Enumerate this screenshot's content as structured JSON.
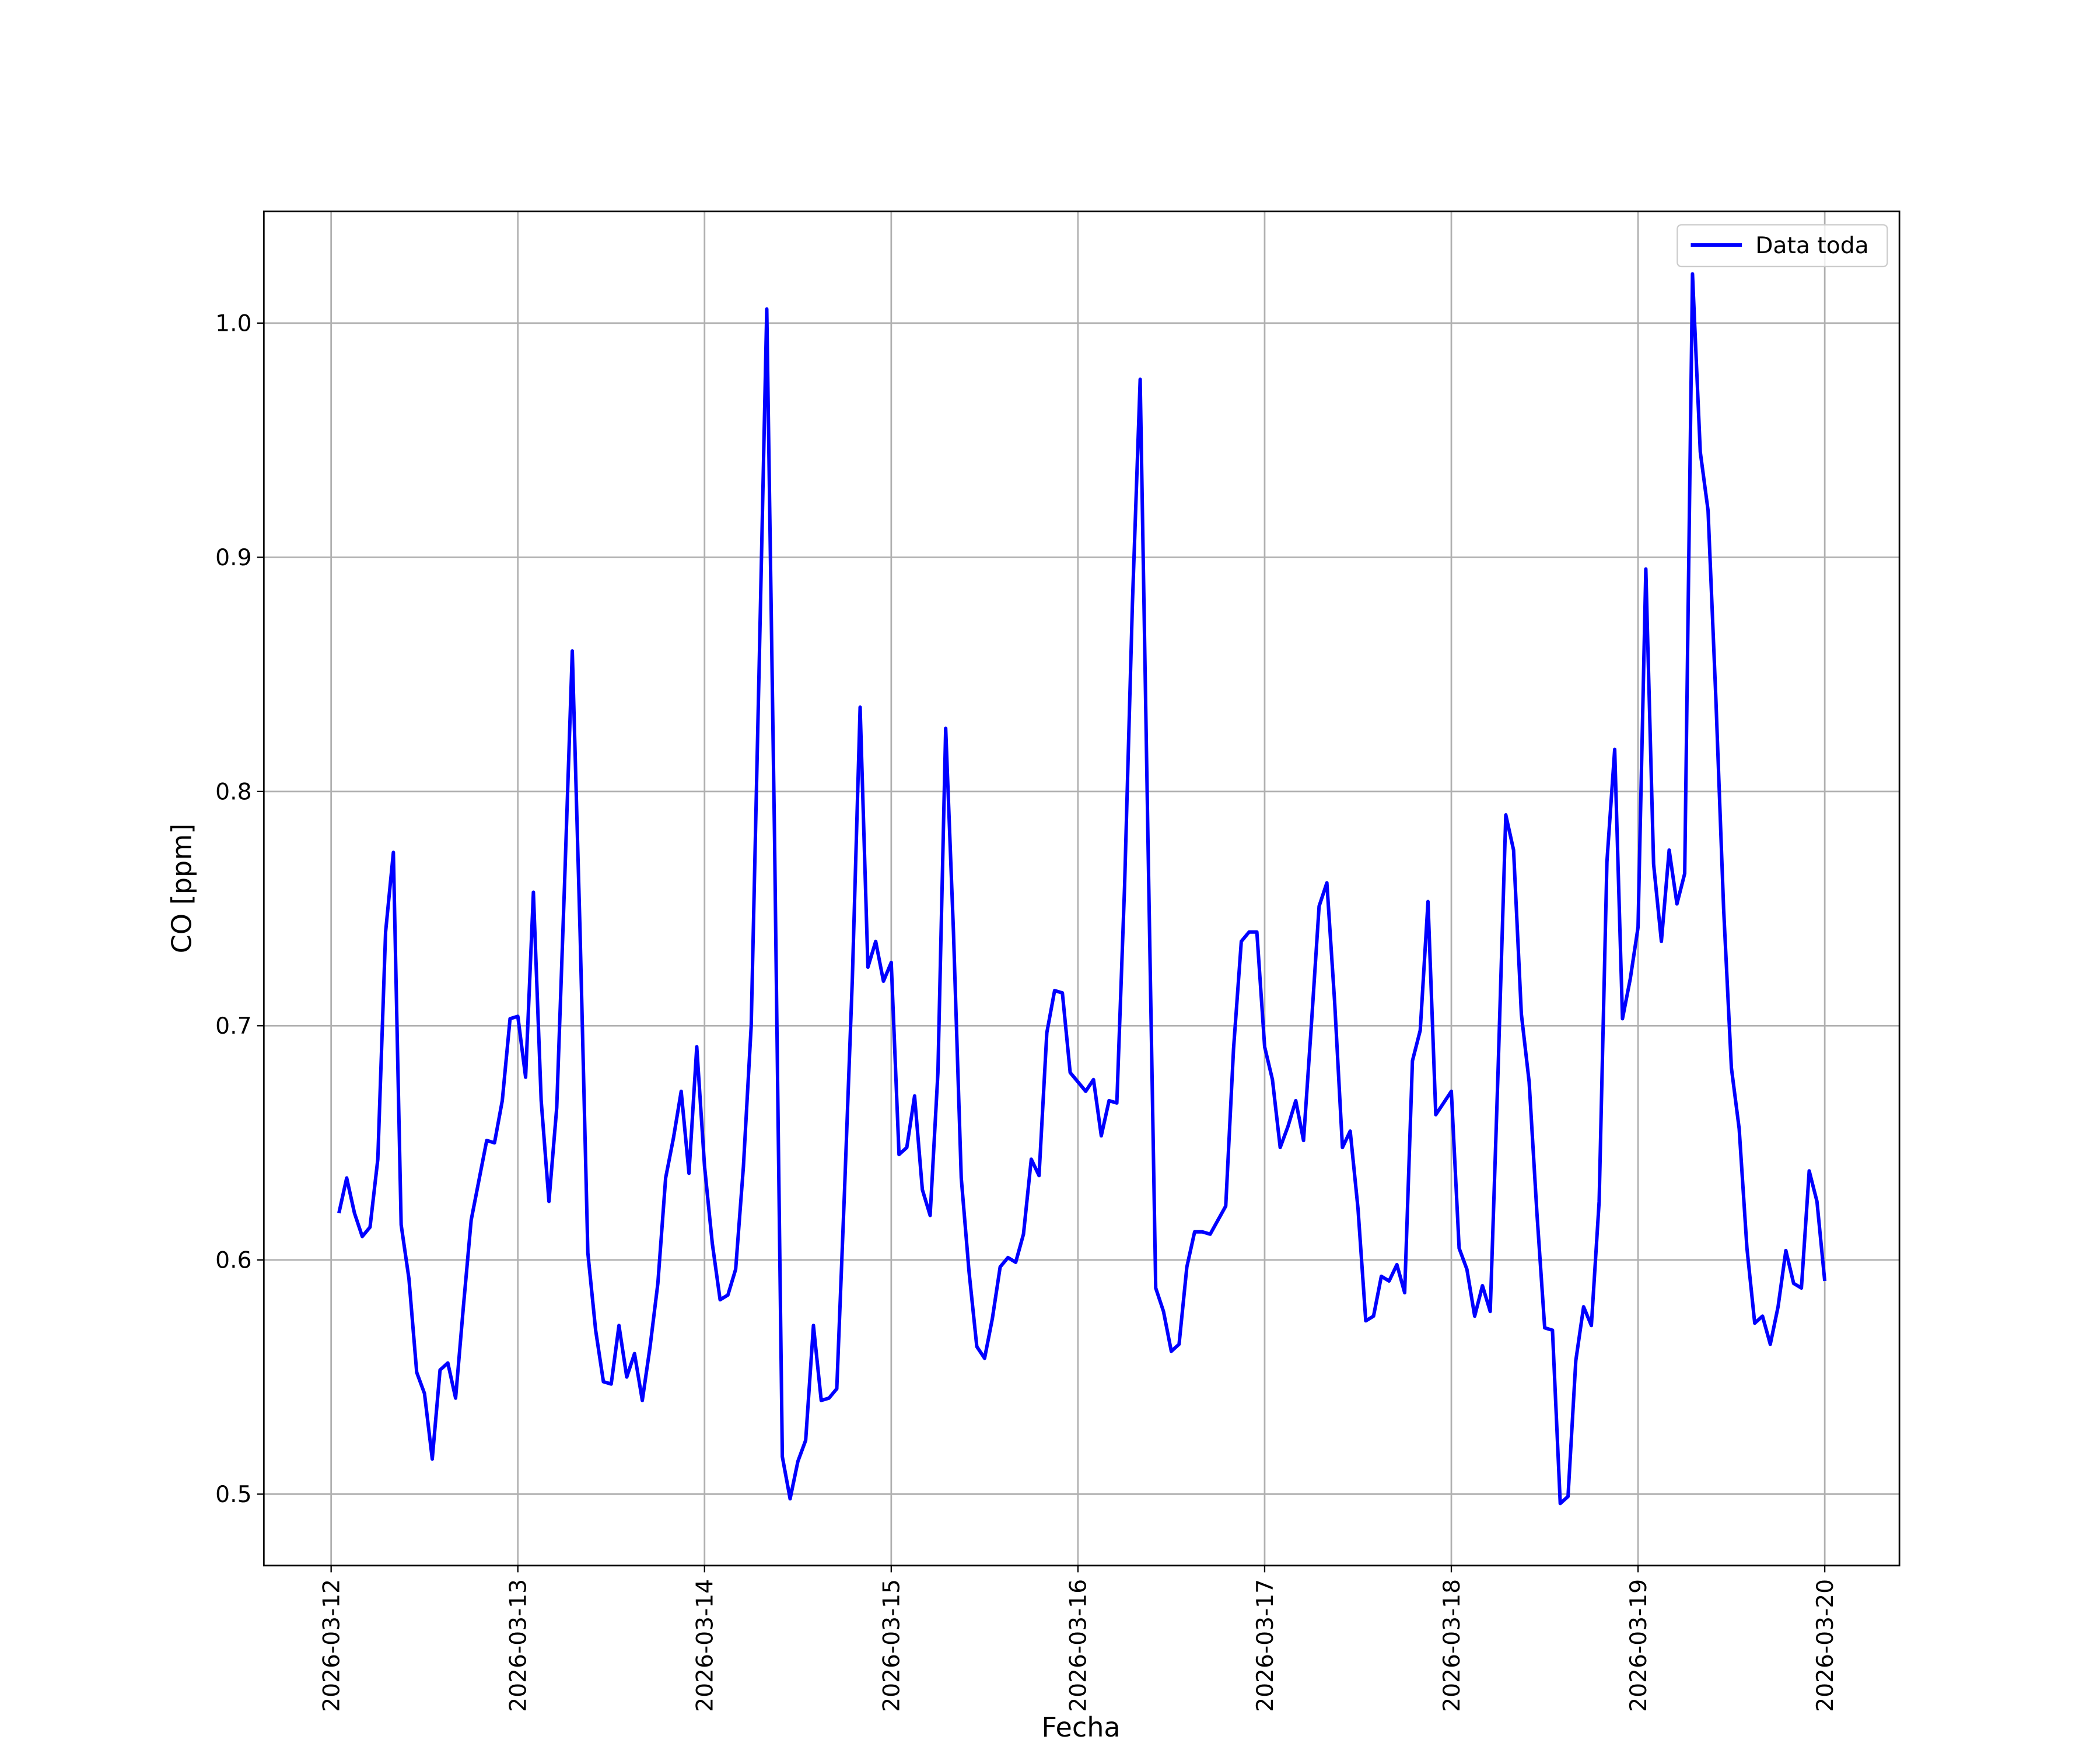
{
  "chart_data": {
    "type": "line",
    "xlabel": "Fecha",
    "ylabel": "CO [ppm]",
    "x": [
      "2026-03-12 01:00",
      "2026-03-12 02:00",
      "2026-03-12 03:00",
      "2026-03-12 04:00",
      "2026-03-12 05:00",
      "2026-03-12 06:00",
      "2026-03-12 07:00",
      "2026-03-12 08:00",
      "2026-03-12 09:00",
      "2026-03-12 10:00",
      "2026-03-12 11:00",
      "2026-03-12 12:00",
      "2026-03-12 13:00",
      "2026-03-12 14:00",
      "2026-03-12 15:00",
      "2026-03-12 16:00",
      "2026-03-12 17:00",
      "2026-03-12 18:00",
      "2026-03-12 19:00",
      "2026-03-12 20:00",
      "2026-03-12 21:00",
      "2026-03-12 22:00",
      "2026-03-12 23:00",
      "2026-03-13 00:00",
      "2026-03-13 01:00",
      "2026-03-13 02:00",
      "2026-03-13 03:00",
      "2026-03-13 04:00",
      "2026-03-13 05:00",
      "2026-03-13 06:00",
      "2026-03-13 07:00",
      "2026-03-13 08:00",
      "2026-03-13 09:00",
      "2026-03-13 10:00",
      "2026-03-13 11:00",
      "2026-03-13 12:00",
      "2026-03-13 13:00",
      "2026-03-13 14:00",
      "2026-03-13 15:00",
      "2026-03-13 16:00",
      "2026-03-13 17:00",
      "2026-03-13 18:00",
      "2026-03-13 19:00",
      "2026-03-13 20:00",
      "2026-03-13 21:00",
      "2026-03-13 22:00",
      "2026-03-13 23:00",
      "2026-03-14 00:00",
      "2026-03-14 01:00",
      "2026-03-14 02:00",
      "2026-03-14 03:00",
      "2026-03-14 04:00",
      "2026-03-14 05:00",
      "2026-03-14 06:00",
      "2026-03-14 07:00",
      "2026-03-14 08:00",
      "2026-03-14 09:00",
      "2026-03-14 10:00",
      "2026-03-14 11:00",
      "2026-03-14 12:00",
      "2026-03-14 13:00",
      "2026-03-14 14:00",
      "2026-03-14 15:00",
      "2026-03-14 16:00",
      "2026-03-14 17:00",
      "2026-03-14 18:00",
      "2026-03-14 19:00",
      "2026-03-14 20:00",
      "2026-03-14 21:00",
      "2026-03-14 22:00",
      "2026-03-14 23:00",
      "2026-03-15 00:00",
      "2026-03-15 01:00",
      "2026-03-15 02:00",
      "2026-03-15 03:00",
      "2026-03-15 04:00",
      "2026-03-15 05:00",
      "2026-03-15 06:00",
      "2026-03-15 07:00",
      "2026-03-15 08:00",
      "2026-03-15 09:00",
      "2026-03-15 10:00",
      "2026-03-15 11:00",
      "2026-03-15 12:00",
      "2026-03-15 13:00",
      "2026-03-15 14:00",
      "2026-03-15 15:00",
      "2026-03-15 16:00",
      "2026-03-15 17:00",
      "2026-03-15 18:00",
      "2026-03-15 19:00",
      "2026-03-15 20:00",
      "2026-03-15 21:00",
      "2026-03-15 22:00",
      "2026-03-15 23:00",
      "2026-03-16 00:00",
      "2026-03-16 01:00",
      "2026-03-16 02:00",
      "2026-03-16 03:00",
      "2026-03-16 04:00",
      "2026-03-16 05:00",
      "2026-03-16 06:00",
      "2026-03-16 07:00",
      "2026-03-16 08:00",
      "2026-03-16 09:00",
      "2026-03-16 10:00",
      "2026-03-16 11:00",
      "2026-03-16 12:00",
      "2026-03-16 13:00",
      "2026-03-16 14:00",
      "2026-03-16 15:00",
      "2026-03-16 16:00",
      "2026-03-16 17:00",
      "2026-03-16 18:00",
      "2026-03-16 19:00",
      "2026-03-16 20:00",
      "2026-03-16 21:00",
      "2026-03-16 22:00",
      "2026-03-16 23:00",
      "2026-03-17 00:00",
      "2026-03-17 01:00",
      "2026-03-17 02:00",
      "2026-03-17 03:00",
      "2026-03-17 04:00",
      "2026-03-17 05:00",
      "2026-03-17 06:00",
      "2026-03-17 07:00",
      "2026-03-17 08:00",
      "2026-03-17 09:00",
      "2026-03-17 10:00",
      "2026-03-17 11:00",
      "2026-03-17 12:00",
      "2026-03-17 13:00",
      "2026-03-17 14:00",
      "2026-03-17 15:00",
      "2026-03-17 16:00",
      "2026-03-17 17:00",
      "2026-03-17 18:00",
      "2026-03-17 19:00",
      "2026-03-17 20:00",
      "2026-03-17 21:00",
      "2026-03-17 22:00",
      "2026-03-17 23:00",
      "2026-03-18 00:00",
      "2026-03-18 01:00",
      "2026-03-18 02:00",
      "2026-03-18 03:00",
      "2026-03-18 04:00",
      "2026-03-18 05:00",
      "2026-03-18 06:00",
      "2026-03-18 07:00",
      "2026-03-18 08:00",
      "2026-03-18 09:00",
      "2026-03-18 10:00",
      "2026-03-18 11:00",
      "2026-03-18 12:00",
      "2026-03-18 13:00",
      "2026-03-18 14:00",
      "2026-03-18 15:00",
      "2026-03-18 16:00",
      "2026-03-18 17:00",
      "2026-03-18 18:00",
      "2026-03-18 19:00",
      "2026-03-18 20:00",
      "2026-03-18 21:00",
      "2026-03-18 22:00",
      "2026-03-18 23:00",
      "2026-03-19 00:00",
      "2026-03-19 01:00",
      "2026-03-19 02:00",
      "2026-03-19 03:00",
      "2026-03-19 04:00",
      "2026-03-19 05:00",
      "2026-03-19 06:00",
      "2026-03-19 07:00",
      "2026-03-19 08:00",
      "2026-03-19 09:00",
      "2026-03-19 10:00",
      "2026-03-19 11:00",
      "2026-03-19 12:00",
      "2026-03-19 13:00",
      "2026-03-19 14:00",
      "2026-03-19 15:00",
      "2026-03-19 16:00",
      "2026-03-19 17:00",
      "2026-03-19 18:00",
      "2026-03-19 19:00",
      "2026-03-19 20:00",
      "2026-03-19 21:00",
      "2026-03-19 22:00",
      "2026-03-19 23:00",
      "2026-03-20 00:00"
    ],
    "series": [
      {
        "name": "Data toda",
        "color": "#0000ff",
        "values": [
          0.62,
          0.635,
          0.62,
          0.61,
          0.614,
          0.643,
          0.74,
          0.774,
          0.615,
          0.592,
          0.552,
          0.543,
          0.515,
          0.553,
          0.556,
          0.541,
          0.58,
          0.617,
          0.634,
          0.651,
          0.65,
          0.668,
          0.703,
          0.704,
          0.678,
          0.757,
          0.668,
          0.625,
          0.665,
          0.76,
          0.86,
          0.74,
          0.603,
          0.57,
          0.548,
          0.547,
          0.572,
          0.55,
          0.56,
          0.54,
          0.563,
          0.59,
          0.635,
          0.652,
          0.672,
          0.637,
          0.691,
          0.64,
          0.607,
          0.583,
          0.585,
          0.596,
          0.64,
          0.7,
          0.85,
          1.006,
          0.78,
          0.516,
          0.498,
          0.514,
          0.523,
          0.572,
          0.54,
          0.541,
          0.545,
          0.63,
          0.72,
          0.836,
          0.725,
          0.736,
          0.719,
          0.727,
          0.645,
          0.648,
          0.67,
          0.63,
          0.619,
          0.68,
          0.827,
          0.74,
          0.635,
          0.595,
          0.563,
          0.558,
          0.575,
          0.597,
          0.601,
          0.599,
          0.611,
          0.643,
          0.636,
          0.697,
          0.715,
          0.714,
          0.68,
          0.676,
          0.672,
          0.677,
          0.653,
          0.668,
          0.667,
          0.76,
          0.88,
          0.976,
          0.78,
          0.588,
          0.578,
          0.561,
          0.564,
          0.597,
          0.612,
          0.612,
          0.611,
          0.617,
          0.623,
          0.69,
          0.736,
          0.74,
          0.74,
          0.691,
          0.677,
          0.648,
          0.657,
          0.668,
          0.651,
          0.7,
          0.751,
          0.761,
          0.71,
          0.648,
          0.655,
          0.622,
          0.574,
          0.576,
          0.593,
          0.591,
          0.598,
          0.586,
          0.685,
          0.698,
          0.753,
          0.662,
          0.667,
          0.672,
          0.605,
          0.596,
          0.576,
          0.589,
          0.578,
          0.68,
          0.79,
          0.775,
          0.705,
          0.676,
          0.62,
          0.571,
          0.57,
          0.496,
          0.499,
          0.557,
          0.58,
          0.572,
          0.625,
          0.77,
          0.818,
          0.703,
          0.72,
          0.742,
          0.895,
          0.769,
          0.736,
          0.775,
          0.752,
          0.765,
          1.021,
          0.945,
          0.92,
          0.84,
          0.75,
          0.682,
          0.656,
          0.605,
          0.573,
          0.576,
          0.564,
          0.58,
          0.604,
          0.59,
          0.588,
          0.638,
          0.625,
          0.591
        ]
      }
    ],
    "xlim": [
      "2026-03-11 15:21",
      "2026-03-20 09:36"
    ],
    "xticks": [
      "2026-03-12",
      "2026-03-13",
      "2026-03-14",
      "2026-03-15",
      "2026-03-16",
      "2026-03-17",
      "2026-03-18",
      "2026-03-19",
      "2026-03-20"
    ],
    "ylim": [
      0.4695,
      1.0477
    ],
    "yticks": [
      0.5,
      0.6,
      0.7,
      0.8,
      0.9,
      {
        "value": 1,
        "label": "1.0"
      }
    ],
    "grid": true,
    "legend": "upper right"
  }
}
